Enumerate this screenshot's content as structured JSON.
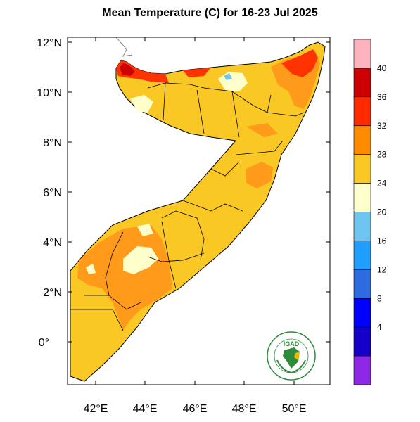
{
  "title": "Mean Temperature (C) for 16-23 Jul 2025",
  "map": {
    "lat_labels": [
      "12°N",
      "10°N",
      "8°N",
      "6°N",
      "4°N",
      "2°N",
      "0°"
    ],
    "lon_labels": [
      "42°E",
      "44°E",
      "46°E",
      "48°E",
      "50°E"
    ]
  },
  "colorbar": {
    "labels": [
      "40",
      "36",
      "32",
      "28",
      "24",
      "20",
      "16",
      "12",
      "8",
      "4"
    ],
    "colors": [
      "#ffb3bf",
      "#cc0000",
      "#ff2a00",
      "#ff8c00",
      "#f9c825",
      "#ffffcc",
      "#6ec6f0",
      "#1e9fff",
      "#2f6be0",
      "#0000ff",
      "#1400c8",
      "#8c28e6"
    ]
  },
  "logo": {
    "name": "IGAD",
    "ring_text": "INTERGOVERNMENTAL AUTHORITY ON DEVELOPMENT"
  }
}
